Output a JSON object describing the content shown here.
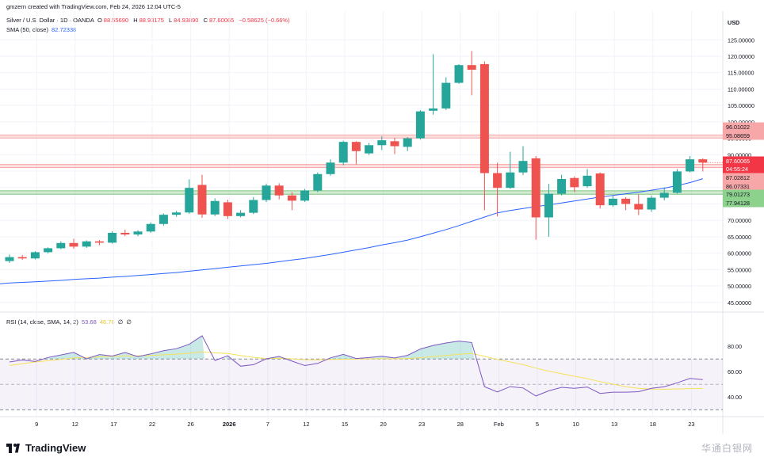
{
  "header": {
    "credit": "gmzern created with TradingView.com, Feb 24, 2026 12:04 UTC-5",
    "symbol": "Silver / U.S. Dollar · 1D · OANDA",
    "ohlc": {
      "o_label": "O",
      "o": "88.55690",
      "h_label": "H",
      "h": "88.93175",
      "l_label": "L",
      "l": "84.93890",
      "c_label": "C",
      "c": "87.60065",
      "change": "−0.58625 (−0.66%)"
    },
    "sma_label": "SMA (50, close)",
    "sma_value": "82.72338",
    "rsi_label": "RSI (14, close, SMA, 14, 2)",
    "rsi_value": "53.68",
    "rsi_sma_value": "46.76",
    "rsi_extra_1": "∅",
    "rsi_extra_2": "∅"
  },
  "branding": {
    "logo_text": "TradingView",
    "watermark": "华通白银网"
  },
  "colors": {
    "up": "#26a69a",
    "down": "#ef5350",
    "sma": "#2962ff",
    "rsi": "#7e57c2",
    "rsi_sma": "#f5e15a",
    "resistance_zone": "#f7a7a7",
    "support_zone": "#7fc77f"
  },
  "chart_data": [
    {
      "type": "candlestick",
      "currency": "USD",
      "x_labels": [
        "9",
        "12",
        "17",
        "22",
        "26",
        "2026",
        "7",
        "12",
        "15",
        "20",
        "23",
        "28",
        "Feb",
        "5",
        "10",
        "13",
        "18",
        "23"
      ],
      "x_label_index": [
        1,
        4,
        7,
        10,
        13,
        16,
        19,
        22,
        25,
        28,
        31,
        34,
        37,
        40,
        43,
        46,
        49,
        52
      ],
      "y_ticks": [
        45,
        50,
        55,
        60,
        65,
        70,
        75,
        80,
        85,
        90,
        95,
        100,
        105,
        110,
        115,
        120,
        125
      ],
      "y_tick_labels": [
        "45.00000",
        "50.00000",
        "55.00000",
        "60.00000",
        "65.00000",
        "70.00000",
        "75.00000",
        "80.00000",
        "85.00000",
        "90.00000",
        "95.00000",
        "100.00000",
        "105.00000",
        "110.00000",
        "115.00000",
        "120.00000",
        "125.00000"
      ],
      "ylim": [
        43.5,
        127
      ],
      "candles": [
        {
          "o": 57.6,
          "h": 59.6,
          "l": 57.0,
          "c": 58.8
        },
        {
          "o": 58.8,
          "h": 59.4,
          "l": 58.0,
          "c": 58.4
        },
        {
          "o": 58.4,
          "h": 60.6,
          "l": 58.1,
          "c": 60.3
        },
        {
          "o": 60.3,
          "h": 61.8,
          "l": 59.9,
          "c": 61.5
        },
        {
          "o": 61.5,
          "h": 63.6,
          "l": 61.2,
          "c": 63.1
        },
        {
          "o": 63.1,
          "h": 64.4,
          "l": 61.3,
          "c": 62.0
        },
        {
          "o": 62.0,
          "h": 63.9,
          "l": 61.6,
          "c": 63.6
        },
        {
          "o": 63.6,
          "h": 64.0,
          "l": 62.4,
          "c": 63.2
        },
        {
          "o": 63.2,
          "h": 66.7,
          "l": 62.9,
          "c": 66.2
        },
        {
          "o": 66.2,
          "h": 67.2,
          "l": 65.2,
          "c": 65.7
        },
        {
          "o": 65.7,
          "h": 67.0,
          "l": 65.2,
          "c": 66.6
        },
        {
          "o": 66.6,
          "h": 69.4,
          "l": 66.2,
          "c": 68.9
        },
        {
          "o": 68.9,
          "h": 72.1,
          "l": 68.4,
          "c": 71.7
        },
        {
          "o": 71.7,
          "h": 72.9,
          "l": 71.1,
          "c": 72.4
        },
        {
          "o": 72.4,
          "h": 82.5,
          "l": 72.0,
          "c": 79.9
        },
        {
          "o": 80.8,
          "h": 83.9,
          "l": 70.8,
          "c": 71.8
        },
        {
          "o": 71.8,
          "h": 76.7,
          "l": 71.3,
          "c": 75.9
        },
        {
          "o": 75.5,
          "h": 76.3,
          "l": 70.4,
          "c": 71.3
        },
        {
          "o": 71.3,
          "h": 73.1,
          "l": 70.9,
          "c": 72.3
        },
        {
          "o": 72.3,
          "h": 77.1,
          "l": 71.9,
          "c": 76.2
        },
        {
          "o": 76.2,
          "h": 81.2,
          "l": 75.6,
          "c": 80.6
        },
        {
          "o": 80.6,
          "h": 81.3,
          "l": 76.4,
          "c": 77.6
        },
        {
          "o": 77.6,
          "h": 78.6,
          "l": 73.1,
          "c": 76.0
        },
        {
          "o": 76.0,
          "h": 79.6,
          "l": 75.6,
          "c": 79.1
        },
        {
          "o": 79.1,
          "h": 84.6,
          "l": 78.6,
          "c": 84.1
        },
        {
          "o": 84.1,
          "h": 88.6,
          "l": 83.6,
          "c": 87.6
        },
        {
          "o": 87.6,
          "h": 94.3,
          "l": 86.8,
          "c": 93.9
        },
        {
          "o": 93.9,
          "h": 94.1,
          "l": 87.1,
          "c": 91.1
        },
        {
          "o": 90.4,
          "h": 93.6,
          "l": 89.9,
          "c": 92.9
        },
        {
          "o": 92.9,
          "h": 95.6,
          "l": 91.4,
          "c": 94.4
        },
        {
          "o": 94.1,
          "h": 95.1,
          "l": 90.2,
          "c": 92.6
        },
        {
          "o": 92.4,
          "h": 95.4,
          "l": 91.1,
          "c": 95.0
        },
        {
          "o": 95.0,
          "h": 103.6,
          "l": 94.6,
          "c": 103.2
        },
        {
          "o": 103.4,
          "h": 120.6,
          "l": 102.2,
          "c": 104.1
        },
        {
          "o": 104.1,
          "h": 113.6,
          "l": 103.6,
          "c": 111.9
        },
        {
          "o": 111.9,
          "h": 117.6,
          "l": 111.6,
          "c": 117.3
        },
        {
          "o": 117.3,
          "h": 121.6,
          "l": 108.1,
          "c": 115.9
        },
        {
          "o": 117.6,
          "h": 118.4,
          "l": 73.1,
          "c": 84.4
        },
        {
          "o": 84.4,
          "h": 87.6,
          "l": 71.2,
          "c": 79.9
        },
        {
          "o": 79.9,
          "h": 90.9,
          "l": 79.6,
          "c": 84.6
        },
        {
          "o": 84.6,
          "h": 92.6,
          "l": 83.8,
          "c": 88.1
        },
        {
          "o": 88.9,
          "h": 89.6,
          "l": 64.1,
          "c": 70.9
        },
        {
          "o": 70.9,
          "h": 81.1,
          "l": 65.0,
          "c": 78.1
        },
        {
          "o": 78.1,
          "h": 83.9,
          "l": 77.6,
          "c": 82.6
        },
        {
          "o": 82.9,
          "h": 83.4,
          "l": 78.6,
          "c": 80.1
        },
        {
          "o": 80.4,
          "h": 85.6,
          "l": 79.9,
          "c": 83.6
        },
        {
          "o": 84.3,
          "h": 84.6,
          "l": 73.6,
          "c": 74.6
        },
        {
          "o": 74.6,
          "h": 77.4,
          "l": 74.1,
          "c": 76.6
        },
        {
          "o": 76.6,
          "h": 77.1,
          "l": 73.1,
          "c": 75.0
        },
        {
          "o": 75.0,
          "h": 77.9,
          "l": 71.6,
          "c": 73.3
        },
        {
          "o": 73.3,
          "h": 77.6,
          "l": 72.6,
          "c": 76.9
        },
        {
          "o": 76.9,
          "h": 80.1,
          "l": 76.1,
          "c": 78.4
        },
        {
          "o": 78.4,
          "h": 85.6,
          "l": 78.1,
          "c": 84.9
        },
        {
          "o": 84.9,
          "h": 89.6,
          "l": 84.6,
          "c": 88.6
        },
        {
          "o": 88.6,
          "h": 88.9,
          "l": 84.9,
          "c": 87.6
        }
      ],
      "sma": [
        50.9,
        51.1,
        51.3,
        51.5,
        51.7,
        52.0,
        52.2,
        52.4,
        52.7,
        52.9,
        53.2,
        53.5,
        53.8,
        54.1,
        54.5,
        54.9,
        55.3,
        55.7,
        56.1,
        56.5,
        56.9,
        57.4,
        57.9,
        58.4,
        59.0,
        59.6,
        60.3,
        61.0,
        61.7,
        62.5,
        63.2,
        64.0,
        65.0,
        66.1,
        67.2,
        68.4,
        69.7,
        71.0,
        72.3,
        73.0,
        73.6,
        74.2,
        74.7,
        75.3,
        75.9,
        76.5,
        77.1,
        77.6,
        78.1,
        78.6,
        79.2,
        79.8,
        80.6,
        81.5,
        82.7
      ],
      "levels": [
        {
          "low": 95.08659,
          "high": 96.01022,
          "color": "#f7a7a7",
          "labels": [
            "96.01022",
            "95.08659"
          ]
        },
        {
          "low": 86.07331,
          "high": 87.02812,
          "color": "#f7a7a7",
          "labels": [
            "87.02812",
            "86.07331"
          ]
        },
        {
          "low": 77.94128,
          "high": 79.01273,
          "color": "#7fc77f",
          "labels": [
            "79.01273",
            "77.94128"
          ]
        }
      ],
      "last_price": {
        "value": 87.60065,
        "label": "87.60065",
        "countdown": "04:55:24"
      },
      "grid": true
    },
    {
      "type": "line",
      "name": "RSI (14, close, SMA, 14, 2)",
      "ylim": [
        27,
        92
      ],
      "y_ticks": [
        40,
        60,
        80
      ],
      "y_tick_labels": [
        "40.00",
        "60.00",
        "80.00"
      ],
      "bands": [
        70,
        50,
        30
      ],
      "rsi": [
        67.6,
        69.2,
        68.0,
        71.2,
        73.2,
        75.2,
        70.1,
        73.5,
        72.3,
        75.1,
        71.9,
        74.0,
        76.5,
        78.1,
        81.6,
        88.3,
        68.8,
        72.5,
        64.3,
        65.5,
        70.1,
        72.0,
        68.3,
        64.8,
        66.5,
        70.9,
        73.6,
        70.4,
        71.1,
        72.2,
        70.8,
        72.9,
        77.9,
        80.7,
        82.6,
        84.1,
        83.0,
        48.1,
        44.0,
        48.2,
        47.1,
        40.8,
        44.9,
        47.6,
        46.9,
        47.9,
        42.8,
        43.8,
        43.8,
        44.2,
        46.8,
        48.1,
        51.2,
        54.6,
        53.7
      ],
      "rsi_sma": [
        64.8,
        66.3,
        67.6,
        68.6,
        69.7,
        70.8,
        71.2,
        71.6,
        72.1,
        72.4,
        72.5,
        72.8,
        73.3,
        73.8,
        74.5,
        75.7,
        74.8,
        74.3,
        72.7,
        71.3,
        70.4,
        70.6,
        70.1,
        69.5,
        69.4,
        69.6,
        69.8,
        69.9,
        70.1,
        70.2,
        70.1,
        70.4,
        71.0,
        71.8,
        72.7,
        73.7,
        74.4,
        72.1,
        69.7,
        67.6,
        65.5,
        62.8,
        60.4,
        58.4,
        56.4,
        54.5,
        52.1,
        50.2,
        48.1,
        46.8,
        46.2,
        46.1,
        46.3,
        46.6,
        46.8
      ],
      "grid": true
    }
  ]
}
